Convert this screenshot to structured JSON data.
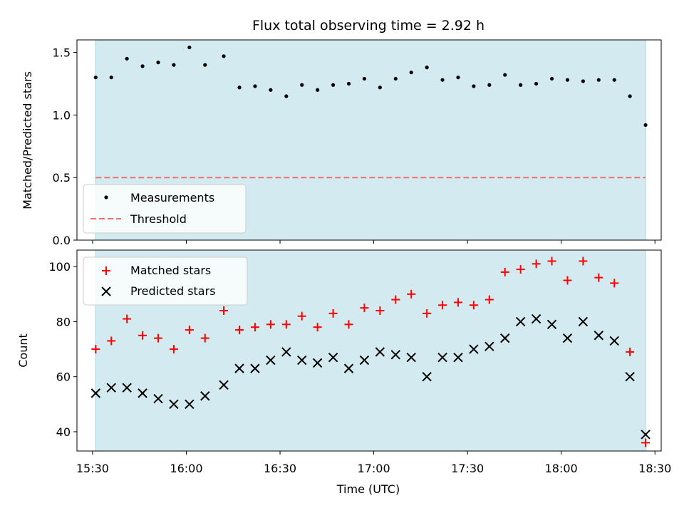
{
  "chart_data": [
    {
      "type": "scatter",
      "title": "Flux total observing time = 2.92 h",
      "xlabel": "",
      "ylabel": "Matched/Predicted stars",
      "xlim": [
        "15:25",
        "18:32"
      ],
      "ylim": [
        0,
        1.6
      ],
      "yticks": [
        "0.0",
        "0.5",
        "1.0",
        "1.5"
      ],
      "shaded_range": [
        "15:31",
        "18:27"
      ],
      "legend_position": "lower-left",
      "x": [
        "15:31",
        "15:36",
        "15:41",
        "15:46",
        "15:51",
        "15:56",
        "16:01",
        "16:06",
        "16:12",
        "16:17",
        "16:22",
        "16:27",
        "16:32",
        "16:37",
        "16:42",
        "16:47",
        "16:52",
        "16:57",
        "17:02",
        "17:07",
        "17:12",
        "17:17",
        "17:22",
        "17:27",
        "17:32",
        "17:37",
        "17:42",
        "17:47",
        "17:52",
        "17:57",
        "18:02",
        "18:07",
        "18:12",
        "18:17",
        "18:22",
        "18:27"
      ],
      "series": [
        {
          "name": "Measurements",
          "marker": "dot",
          "color": "#000000",
          "values": [
            1.3,
            1.3,
            1.45,
            1.39,
            1.42,
            1.4,
            1.54,
            1.4,
            1.47,
            1.22,
            1.23,
            1.2,
            1.15,
            1.24,
            1.2,
            1.24,
            1.25,
            1.29,
            1.22,
            1.29,
            1.34,
            1.38,
            1.28,
            1.3,
            1.23,
            1.24,
            1.32,
            1.24,
            1.25,
            1.29,
            1.28,
            1.27,
            1.28,
            1.28,
            1.15,
            0.92
          ]
        },
        {
          "name": "Threshold",
          "marker": "dashed-line",
          "color": "#f07070",
          "values": [
            0.5,
            0.5
          ],
          "x": [
            "15:31",
            "18:27"
          ]
        }
      ]
    },
    {
      "type": "scatter",
      "title": "",
      "xlabel": "Time (UTC)",
      "ylabel": "Count",
      "xlim": [
        "15:25",
        "18:32"
      ],
      "ylim": [
        33,
        106
      ],
      "yticks": [
        "40",
        "60",
        "80",
        "100"
      ],
      "xticks": [
        "15:30",
        "16:00",
        "16:30",
        "17:00",
        "17:30",
        "18:00",
        "18:30"
      ],
      "shaded_range": [
        "15:31",
        "18:27"
      ],
      "legend_position": "upper-left",
      "x": [
        "15:31",
        "15:36",
        "15:41",
        "15:46",
        "15:51",
        "15:56",
        "16:01",
        "16:06",
        "16:12",
        "16:17",
        "16:22",
        "16:27",
        "16:32",
        "16:37",
        "16:42",
        "16:47",
        "16:52",
        "16:57",
        "17:02",
        "17:07",
        "17:12",
        "17:17",
        "17:22",
        "17:27",
        "17:32",
        "17:37",
        "17:42",
        "17:47",
        "17:52",
        "17:57",
        "18:02",
        "18:07",
        "18:12",
        "18:17",
        "18:22",
        "18:27"
      ],
      "series": [
        {
          "name": "Matched stars",
          "marker": "plus",
          "color": "#ff0000",
          "values": [
            70,
            73,
            81,
            75,
            74,
            70,
            77,
            74,
            84,
            77,
            78,
            79,
            79,
            82,
            78,
            83,
            79,
            85,
            84,
            88,
            90,
            83,
            86,
            87,
            86,
            88,
            98,
            99,
            101,
            102,
            95,
            102,
            96,
            94,
            69,
            36
          ]
        },
        {
          "name": "Predicted stars",
          "marker": "x",
          "color": "#000000",
          "values": [
            54,
            56,
            56,
            54,
            52,
            50,
            50,
            53,
            57,
            63,
            63,
            66,
            69,
            66,
            65,
            67,
            63,
            66,
            69,
            68,
            67,
            60,
            67,
            67,
            70,
            71,
            74,
            80,
            81,
            79,
            74,
            80,
            75,
            73,
            60,
            39
          ]
        }
      ]
    }
  ],
  "colors": {
    "shade": "#d3eaf0",
    "shade_edge": "#a9d4e0",
    "threshold": "#f07070",
    "matched": "#ff0000",
    "predicted": "#000000"
  }
}
